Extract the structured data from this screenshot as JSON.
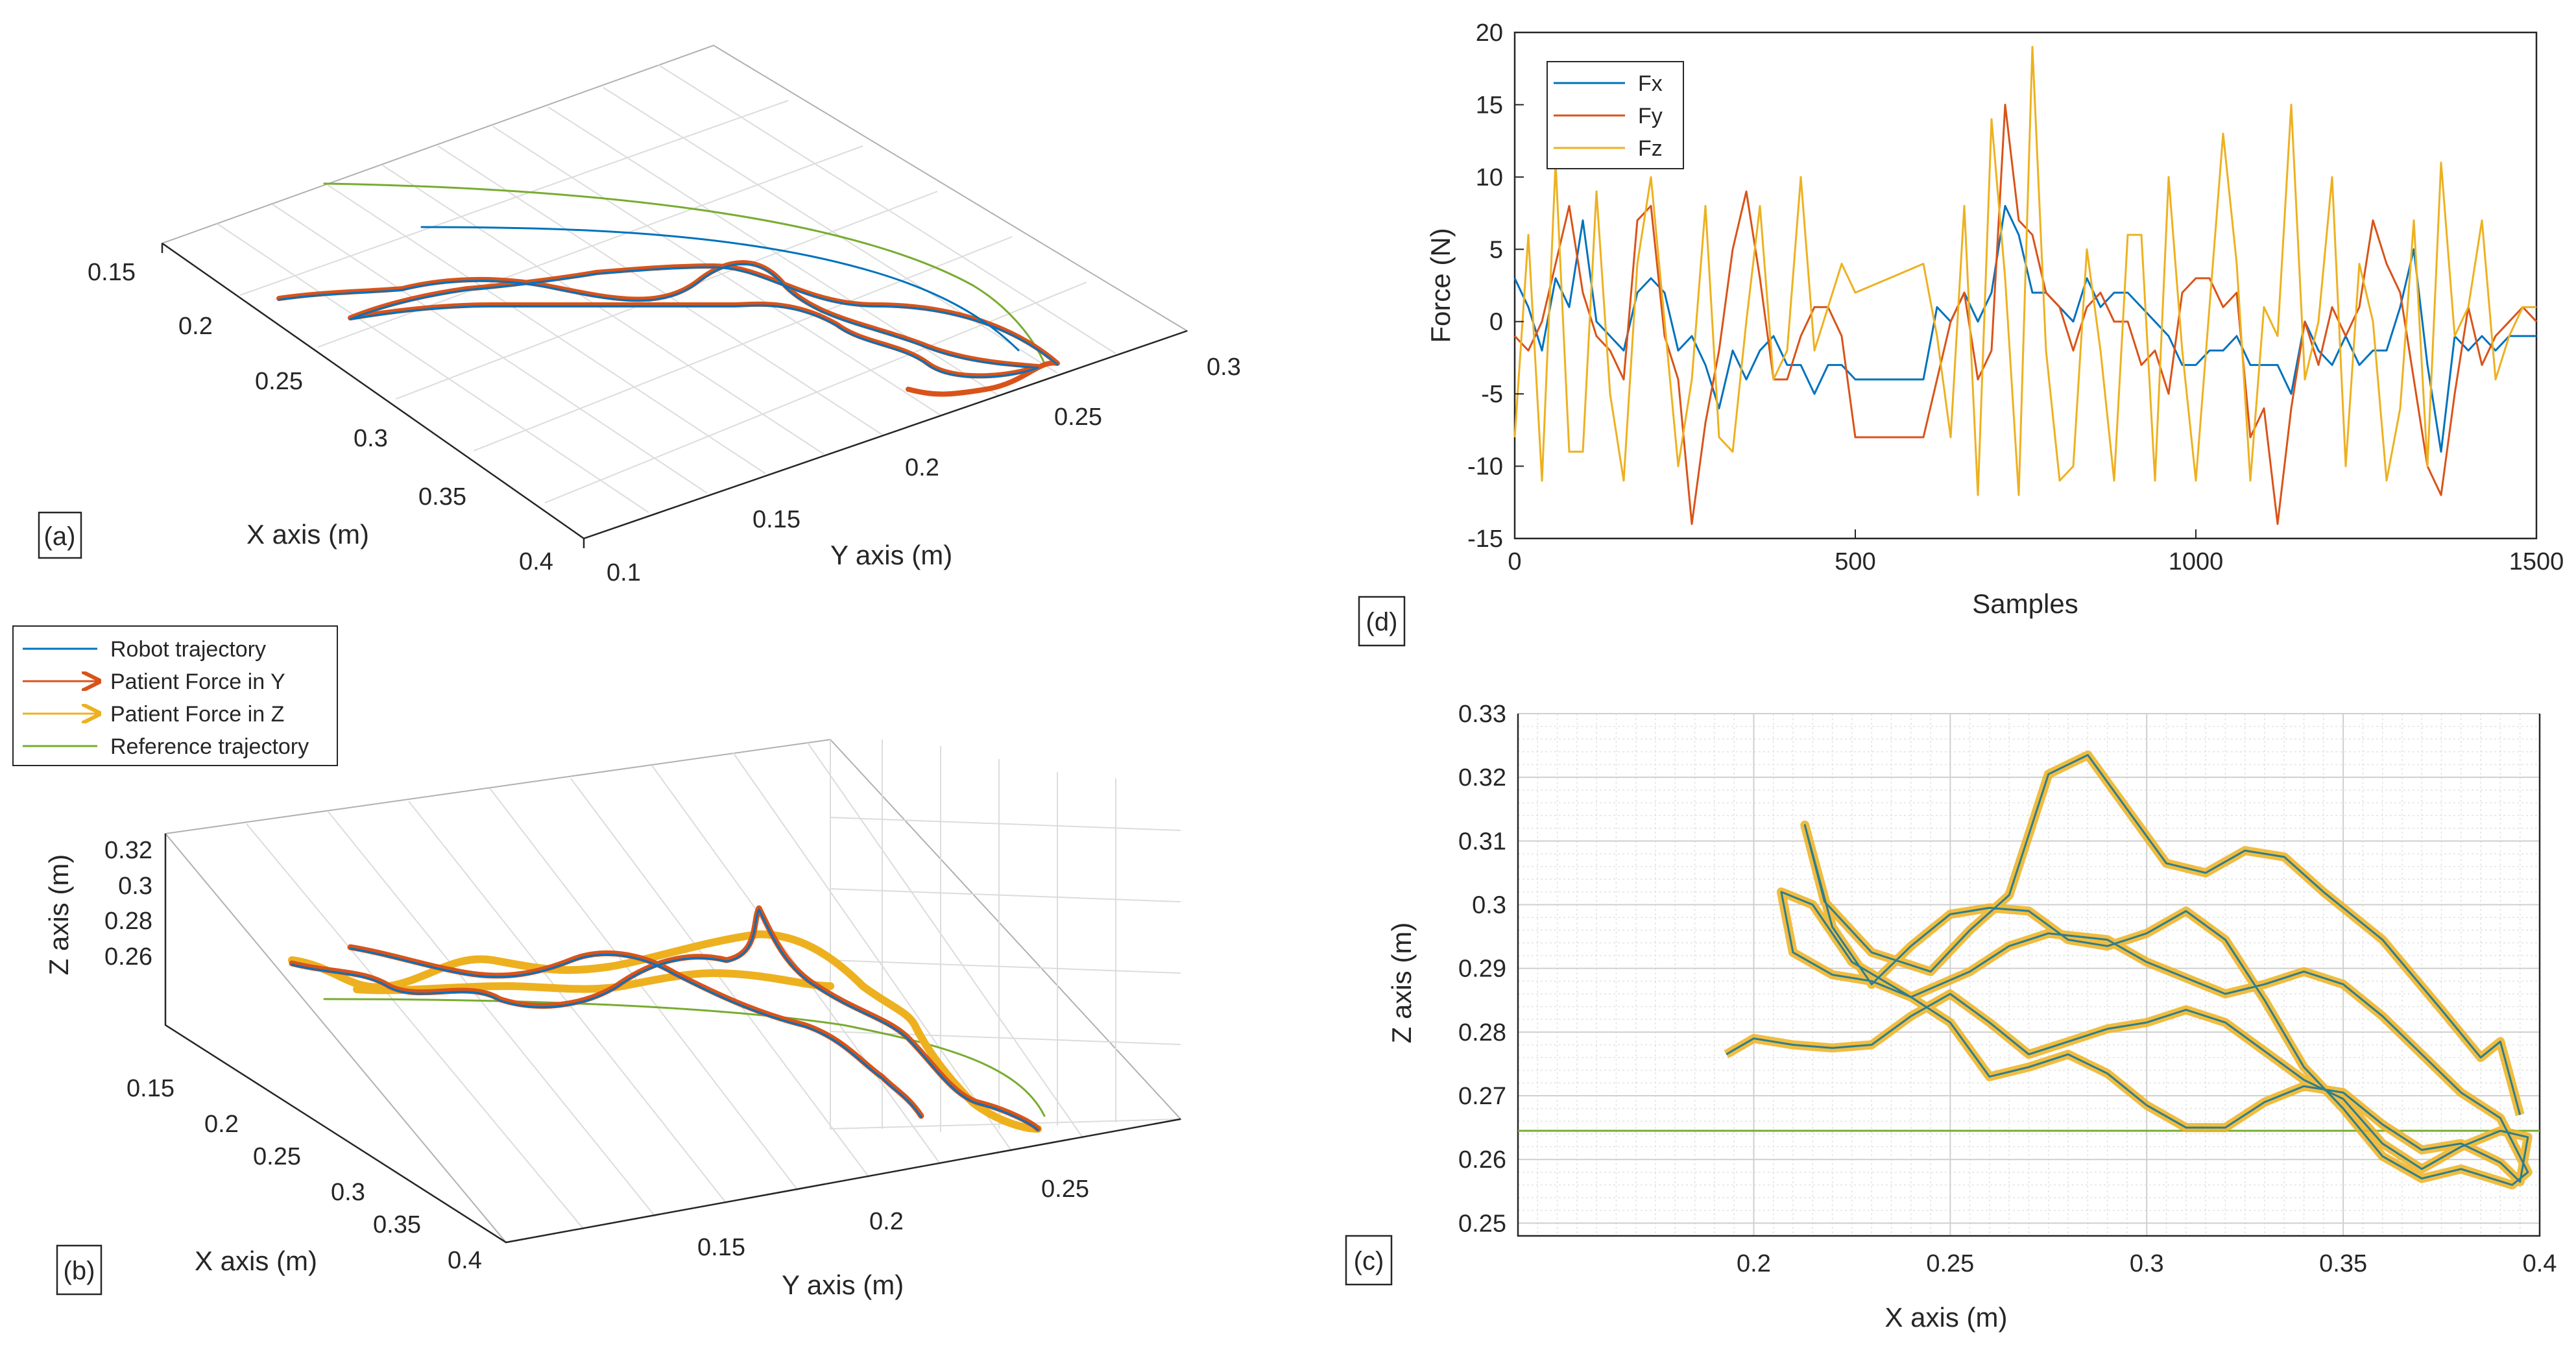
{
  "colors": {
    "blue": "#0072BD",
    "orange": "#D95319",
    "yellow": "#EDB120",
    "green": "#77AC30",
    "axis": "#262626",
    "grid": "#dcdcdc"
  },
  "panel_labels": {
    "a": "(a)",
    "b": "(b)",
    "c": "(c)",
    "d": "(d)"
  },
  "legend_b": {
    "robot": "Robot trajectory",
    "force_y": "Patient Force in Y",
    "force_z": "Patient Force in Z",
    "reference": "Reference trajectory"
  },
  "chart_data": [
    {
      "id": "a",
      "type": "line",
      "view": "3d",
      "xlabel": "X axis (m)",
      "ylabel": "Y axis (m)",
      "x_ticks": [
        "0.15",
        "0.2",
        "0.25",
        "0.3",
        "0.35",
        "0.4"
      ],
      "y_ticks": [
        "0.1",
        "0.15",
        "0.2",
        "0.25",
        "0.3"
      ],
      "series": [
        {
          "name": "Robot trajectory",
          "color": "blue"
        },
        {
          "name": "Patient Force in Y",
          "color": "orange"
        },
        {
          "name": "Reference trajectory",
          "color": "green"
        }
      ]
    },
    {
      "id": "b",
      "type": "line",
      "view": "3d",
      "xlabel": "X axis (m)",
      "ylabel": "Y axis (m)",
      "zlabel": "Z axis (m)",
      "x_ticks": [
        "0.15",
        "0.2",
        "0.25",
        "0.3",
        "0.35",
        "0.4"
      ],
      "y_ticks": [
        "0.15",
        "0.2",
        "0.25"
      ],
      "z_ticks": [
        "0.32",
        "0.3",
        "0.28",
        "0.26"
      ],
      "series": [
        {
          "name": "Robot trajectory",
          "color": "blue"
        },
        {
          "name": "Patient Force in Y",
          "color": "orange"
        },
        {
          "name": "Patient Force in Z",
          "color": "yellow"
        },
        {
          "name": "Reference trajectory",
          "color": "green"
        }
      ]
    },
    {
      "id": "c",
      "type": "line",
      "xlabel": "X axis (m)",
      "ylabel": "Z axis (m)",
      "xlim": [
        0.14,
        0.4
      ],
      "ylim": [
        0.248,
        0.33
      ],
      "x_ticks": [
        "0.2",
        "0.25",
        "0.3",
        "0.35",
        "0.4"
      ],
      "y_ticks": [
        "0.25",
        "0.26",
        "0.27",
        "0.28",
        "0.29",
        "0.3",
        "0.31",
        "0.32",
        "0.33"
      ],
      "x_tick_values": [
        0.2,
        0.25,
        0.3,
        0.35,
        0.4
      ],
      "y_tick_values": [
        0.25,
        0.26,
        0.27,
        0.28,
        0.29,
        0.3,
        0.31,
        0.32,
        0.33
      ],
      "reference_z": 0.2645,
      "trajectory": [
        [
          0.193,
          0.2765
        ],
        [
          0.2,
          0.279
        ],
        [
          0.21,
          0.278
        ],
        [
          0.22,
          0.2775
        ],
        [
          0.23,
          0.278
        ],
        [
          0.24,
          0.2825
        ],
        [
          0.25,
          0.286
        ],
        [
          0.26,
          0.2815
        ],
        [
          0.27,
          0.2765
        ],
        [
          0.28,
          0.2785
        ],
        [
          0.29,
          0.2805
        ],
        [
          0.3,
          0.2815
        ],
        [
          0.31,
          0.2835
        ],
        [
          0.32,
          0.2815
        ],
        [
          0.33,
          0.277
        ],
        [
          0.34,
          0.2725
        ],
        [
          0.35,
          0.2695
        ],
        [
          0.36,
          0.2625
        ],
        [
          0.37,
          0.2585
        ],
        [
          0.38,
          0.262
        ],
        [
          0.39,
          0.2645
        ],
        [
          0.397,
          0.2635
        ],
        [
          0.395,
          0.2565
        ],
        [
          0.39,
          0.2595
        ],
        [
          0.38,
          0.2625
        ],
        [
          0.37,
          0.2615
        ],
        [
          0.36,
          0.2655
        ],
        [
          0.35,
          0.2705
        ],
        [
          0.34,
          0.2715
        ],
        [
          0.33,
          0.269
        ],
        [
          0.32,
          0.265
        ],
        [
          0.31,
          0.265
        ],
        [
          0.3,
          0.2685
        ],
        [
          0.29,
          0.2735
        ],
        [
          0.28,
          0.2765
        ],
        [
          0.27,
          0.2745
        ],
        [
          0.26,
          0.273
        ],
        [
          0.25,
          0.2815
        ],
        [
          0.24,
          0.2855
        ],
        [
          0.23,
          0.288
        ],
        [
          0.22,
          0.289
        ],
        [
          0.21,
          0.2925
        ],
        [
          0.207,
          0.302
        ],
        [
          0.215,
          0.3
        ],
        [
          0.225,
          0.291
        ],
        [
          0.24,
          0.2855
        ],
        [
          0.255,
          0.2895
        ],
        [
          0.265,
          0.2935
        ],
        [
          0.275,
          0.2955
        ],
        [
          0.29,
          0.2945
        ],
        [
          0.3,
          0.291
        ],
        [
          0.31,
          0.2885
        ],
        [
          0.32,
          0.286
        ],
        [
          0.33,
          0.2875
        ],
        [
          0.34,
          0.2895
        ],
        [
          0.35,
          0.2875
        ],
        [
          0.36,
          0.2825
        ],
        [
          0.37,
          0.2765
        ],
        [
          0.38,
          0.2705
        ],
        [
          0.39,
          0.2665
        ],
        [
          0.397,
          0.258
        ],
        [
          0.393,
          0.256
        ],
        [
          0.38,
          0.2585
        ],
        [
          0.37,
          0.257
        ],
        [
          0.36,
          0.2605
        ],
        [
          0.35,
          0.268
        ],
        [
          0.34,
          0.2745
        ],
        [
          0.33,
          0.285
        ],
        [
          0.32,
          0.2945
        ],
        [
          0.31,
          0.299
        ],
        [
          0.3,
          0.2955
        ],
        [
          0.29,
          0.2935
        ],
        [
          0.28,
          0.2945
        ],
        [
          0.27,
          0.299
        ],
        [
          0.26,
          0.2995
        ],
        [
          0.25,
          0.2985
        ],
        [
          0.24,
          0.2935
        ],
        [
          0.23,
          0.2875
        ],
        [
          0.22,
          0.2965
        ],
        [
          0.213,
          0.3125
        ],
        [
          0.218,
          0.3005
        ],
        [
          0.23,
          0.2925
        ],
        [
          0.245,
          0.2895
        ],
        [
          0.255,
          0.296
        ],
        [
          0.265,
          0.3015
        ],
        [
          0.275,
          0.3205
        ],
        [
          0.285,
          0.3235
        ],
        [
          0.295,
          0.315
        ],
        [
          0.305,
          0.3065
        ],
        [
          0.315,
          0.305
        ],
        [
          0.325,
          0.3085
        ],
        [
          0.335,
          0.3075
        ],
        [
          0.345,
          0.302
        ],
        [
          0.36,
          0.2945
        ],
        [
          0.375,
          0.2835
        ],
        [
          0.385,
          0.276
        ],
        [
          0.39,
          0.2785
        ],
        [
          0.395,
          0.267
        ]
      ]
    },
    {
      "id": "d",
      "type": "line",
      "xlabel": "Samples",
      "ylabel": "Force (N)",
      "xlim": [
        0,
        1500
      ],
      "ylim": [
        -15,
        20
      ],
      "x_ticks": [
        "0",
        "500",
        "1000",
        "1500"
      ],
      "y_ticks": [
        "-15",
        "-10",
        "-5",
        "0",
        "5",
        "10",
        "15",
        "20"
      ],
      "x_tick_values": [
        0,
        500,
        1000,
        1500
      ],
      "y_tick_values": [
        -15,
        -10,
        -5,
        0,
        5,
        10,
        15,
        20
      ],
      "legend_position": "top-left",
      "series": [
        {
          "name": "Fx",
          "color": "blue",
          "x": [
            0,
            20,
            40,
            60,
            80,
            100,
            120,
            140,
            160,
            180,
            200,
            220,
            240,
            260,
            280,
            300,
            320,
            340,
            360,
            380,
            400,
            420,
            440,
            460,
            480,
            500,
            600,
            620,
            640,
            660,
            680,
            700,
            720,
            740,
            760,
            780,
            800,
            820,
            840,
            860,
            880,
            900,
            920,
            940,
            960,
            980,
            1000,
            1020,
            1040,
            1060,
            1080,
            1100,
            1120,
            1140,
            1160,
            1180,
            1200,
            1220,
            1240,
            1260,
            1280,
            1300,
            1320,
            1340,
            1360,
            1380,
            1400,
            1420,
            1440,
            1460,
            1480,
            1500
          ],
          "values": [
            3,
            1,
            -2,
            3,
            1,
            7,
            0,
            -1,
            -2,
            2,
            3,
            2,
            -2,
            -1,
            -3,
            -6,
            -2,
            -4,
            -2,
            -1,
            -3,
            -3,
            -5,
            -3,
            -3,
            -4,
            -4,
            1,
            0,
            2,
            0,
            2,
            8,
            6,
            2,
            2,
            1,
            0,
            3,
            1,
            2,
            2,
            1,
            0,
            -1,
            -3,
            -3,
            -2,
            -2,
            -1,
            -3,
            -3,
            -3,
            -5,
            0,
            -2,
            -3,
            -1,
            -3,
            -2,
            -2,
            1,
            5,
            -3,
            -9,
            -1,
            -2,
            -1,
            -2,
            -1,
            -1,
            -1
          ]
        },
        {
          "name": "Fy",
          "color": "orange",
          "x": [
            0,
            20,
            40,
            60,
            80,
            100,
            120,
            140,
            160,
            180,
            200,
            220,
            240,
            260,
            280,
            300,
            320,
            340,
            360,
            380,
            400,
            420,
            440,
            460,
            480,
            500,
            600,
            620,
            640,
            660,
            680,
            700,
            720,
            740,
            760,
            780,
            800,
            820,
            840,
            860,
            880,
            900,
            920,
            940,
            960,
            980,
            1000,
            1020,
            1040,
            1060,
            1080,
            1100,
            1120,
            1140,
            1160,
            1180,
            1200,
            1220,
            1240,
            1260,
            1280,
            1300,
            1320,
            1340,
            1360,
            1380,
            1400,
            1420,
            1440,
            1460,
            1480,
            1500
          ],
          "values": [
            -1,
            -2,
            0,
            4,
            8,
            2,
            -1,
            -2,
            -4,
            7,
            8,
            -1,
            -4,
            -14,
            -7,
            -2,
            5,
            9,
            3,
            -4,
            -4,
            -1,
            1,
            1,
            -1,
            -8,
            -8,
            -4,
            0,
            2,
            -4,
            -2,
            15,
            7,
            6,
            2,
            1,
            -2,
            1,
            2,
            0,
            0,
            -3,
            -2,
            -5,
            2,
            3,
            3,
            1,
            2,
            -8,
            -6,
            -14,
            -6,
            0,
            -3,
            1,
            -1,
            1,
            7,
            4,
            2,
            -4,
            -10,
            -12,
            -5,
            1,
            -3,
            -1,
            0,
            1,
            0
          ]
        },
        {
          "name": "Fz",
          "color": "yellow",
          "x": [
            0,
            20,
            40,
            60,
            80,
            100,
            120,
            140,
            160,
            180,
            200,
            220,
            240,
            260,
            280,
            300,
            320,
            340,
            360,
            380,
            400,
            420,
            440,
            460,
            480,
            500,
            600,
            620,
            640,
            660,
            680,
            700,
            720,
            740,
            760,
            780,
            800,
            820,
            840,
            860,
            880,
            900,
            920,
            940,
            960,
            980,
            1000,
            1020,
            1040,
            1060,
            1080,
            1100,
            1120,
            1140,
            1160,
            1180,
            1200,
            1220,
            1240,
            1260,
            1280,
            1300,
            1320,
            1340,
            1360,
            1380,
            1400,
            1420,
            1440,
            1460,
            1480,
            1500
          ],
          "values": [
            -8,
            6,
            -11,
            11,
            -9,
            -9,
            9,
            -5,
            -11,
            4,
            10,
            0,
            -10,
            -4,
            8,
            -8,
            -9,
            0,
            8,
            -4,
            -2,
            10,
            -2,
            1,
            4,
            2,
            4,
            -1,
            -8,
            8,
            -12,
            14,
            3,
            -12,
            19,
            -2,
            -11,
            -10,
            5,
            -2,
            -11,
            6,
            6,
            -11,
            10,
            -2,
            -11,
            1,
            13,
            4,
            -11,
            1,
            -1,
            15,
            -4,
            0,
            10,
            -10,
            4,
            0,
            -11,
            -6,
            7,
            -10,
            11,
            -1,
            1,
            7,
            -4,
            -1,
            1,
            1
          ]
        }
      ]
    }
  ]
}
